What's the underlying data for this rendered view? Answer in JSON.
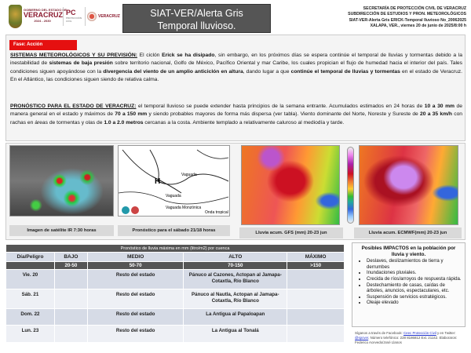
{
  "header": {
    "logo_gob": {
      "top": "GOBIERNO DEL ESTADO DE",
      "name": "VERACRUZ",
      "years": "2024 - 2030"
    },
    "logo_pc": {
      "name": "PC",
      "sub": "PROTECCIÓN CIVIL"
    },
    "logo_ver": "VERACRUZ",
    "title_line1": "SIAT-VER/Alerta Gris",
    "title_line2": "Temporal lluvioso.",
    "right": [
      "SECRETARÍA DE PROTECCIÓN CIVIL DE VERACRUZ",
      "SUBDIRECCIÓN DE ESTUDIOS Y PRON. METEOROLÓGICOS",
      "SIAT-VER-Alerta Gris ERICK-Temporal lluvioso No_20062025",
      "XALAPA, VER., viernes 20 de junio de 2025/8:00 h"
    ]
  },
  "phase": "Fase: Acción",
  "systems": {
    "heading": "SISTEMAS METEOROLÓGICOS Y SU PREVISIÓN:",
    "t1": " El ciclón ",
    "b1": "Erick se ha disipado",
    "t2": ", sin embargo, en los próximos días se espera continúe el temporal de lluvias y tormentas debido a la inestabilidad de ",
    "b2": "sistemas de baja presión",
    "t3": " sobre territorio nacional, Golfo de México, Pacífico Oriental y mar Caribe, los cuales propician el flujo de humedad hacia el interior del país. Tales condiciones siguen apoyándose con la ",
    "b3": "divergencia del viento de un amplio anticiclón en altura",
    "t4": ", dando lugar a que ",
    "b4": "continúe el temporal de lluvias y tormentas",
    "t5": " en el estado de Veracruz. En el Atlántico, las condiciones siguen siendo de relativa calma."
  },
  "forecast": {
    "heading": "PRONÓSTICO PARA EL ESTADO DE VERACRUZ:",
    "t1": " el temporal lluvioso se puede extender hasta principios de la semana entrante. Acumulados estimados en 24 horas de ",
    "b1": "10 a 30 mm",
    "t2": " de manera general en el estado y máximos de ",
    "b2": "70 a 150 mm",
    "t3": " y siendo probables mayores de forma más dispersa (ver tabla). Viento dominante del Norte, Noreste y Sureste de ",
    "b3": "20 a 35 km/h",
    "t4": " con rachas en áreas de tormentas y olas de ",
    "b4": "1.0 a 2.0 metros",
    "t5": " cercanas a la costa. Ambiente templado a relativamente caluroso al mediodía y tarde."
  },
  "images": {
    "satellite_caption": "Imagen de satélite IR 7:30 horas",
    "synoptic_caption": "Pronóstico para el sábado 21/18 horas",
    "synoptic_labels": [
      "H",
      "Vaguada",
      "Vaguada",
      "Vaguada Monzónica",
      "Onda tropical"
    ],
    "gfs_caption": "Lluvia acum. GFS (mm) 20-23  jun",
    "ecmwf_caption": "Lluvia acum. ECMWF(mm) 20-23 jun"
  },
  "table": {
    "title": "Pronóstico de lluvia máxima en mm (litro/m2) por cuenca",
    "headers": [
      "Día/Peligro",
      "BAJO",
      "MEDIO",
      "ALTO",
      "MÁXIMO"
    ],
    "ranges": [
      "",
      "20-50",
      "50-70",
      "70-150",
      ">150"
    ],
    "rows": [
      [
        "Vie. 20",
        "",
        "Resto del estado",
        "Pánuco al Cazones, Actopan al Jamapa-Cotaxtla,  Río Blanco",
        ""
      ],
      [
        "Sáb. 21",
        "",
        "Resto del estado",
        "Pánuco al Nautla, Actopan al Jamapa-Cotaxtla,  Río Blanco",
        ""
      ],
      [
        "Dom. 22",
        "",
        "Resto del estado",
        "La Antigua al Papaloapan",
        ""
      ],
      [
        "Lun. 23",
        "",
        "Resto del estado",
        "La Antigua al Tonalá",
        ""
      ]
    ]
  },
  "impacts": {
    "title": "Posibles IMPACTOS  en la población por lluvia y viento.",
    "items": [
      "Deslaves, deslizamientos de tierra y derrumbes",
      "Inundaciones pluviales.",
      "Crecida de ríos/arroyos de respuesta rápida.",
      "Destechamiento de casas, caídas de árboles, anuncios, espectaculares, etc.",
      "Suspensión de servicios estratégicos.",
      "Oleaje elevado"
    ]
  },
  "footer": {
    "t1": "Síganos a través de Facebook: ",
    "link1": "Ceec Protección Civil",
    "t2": " y en Twitter: ",
    "link2": "@spcver",
    "t3": ". Número telefónico:  228 8186812 Ext. 21142. Elaboraron: Federico Acevedo/José Llanos"
  },
  "colors": {
    "phase_badge": "#e51010",
    "title_bg": "#555555",
    "table_header": "#555555",
    "row_alt": "#d6dbe6"
  }
}
